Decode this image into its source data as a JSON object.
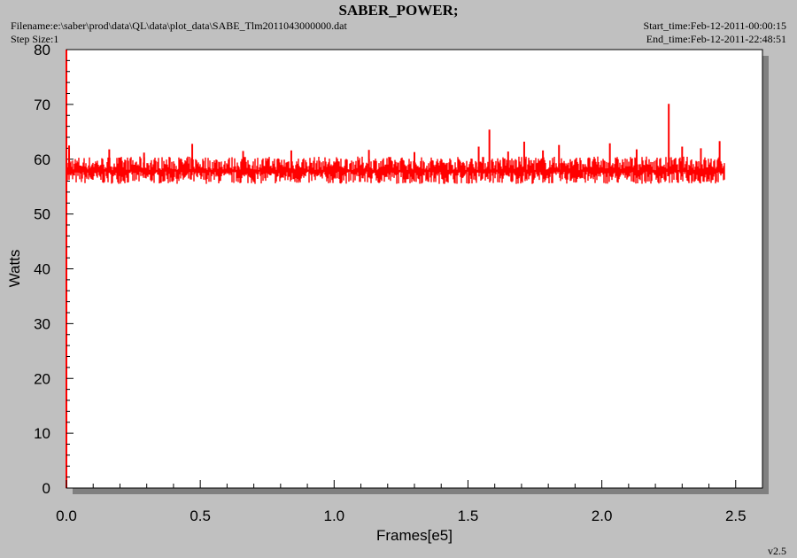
{
  "header": {
    "title": "SABER_POWER;",
    "filename": "Filename:e:\\saber\\prod\\data\\QL\\data\\plot_data\\SABE_Tlm2011043000000.dat",
    "step_size": "Step Size:1",
    "start_time": "Start_time:Feb-12-2011-00:00:15",
    "end_time": "End_time:Feb-12-2011-22:48:51"
  },
  "footer": {
    "version": "v2.5"
  },
  "colors": {
    "series": "#ff0000",
    "background": "#c0c0c0",
    "plot_area": "#ffffff",
    "shadow": "#808080"
  },
  "chart_data": {
    "type": "line",
    "title": "SABER_POWER;",
    "xlabel": "Frames[e5]",
    "ylabel": "Watts",
    "xlim": [
      0,
      2.6
    ],
    "ylim": [
      0,
      80
    ],
    "xticks": [
      "0.0",
      "0.5",
      "1.0",
      "1.5",
      "2.0",
      "2.5"
    ],
    "yticks": [
      "0",
      "10",
      "20",
      "30",
      "40",
      "50",
      "60",
      "70",
      "80"
    ],
    "grid": false,
    "series": [
      {
        "color": "#ff0000",
        "x_range": [
          0,
          2.46
        ],
        "baseline": 58,
        "band": [
          55.5,
          60.5
        ],
        "spikes": [
          {
            "x": 0.01,
            "y": 62.5
          },
          {
            "x": 0.16,
            "y": 61.8
          },
          {
            "x": 0.29,
            "y": 61.2
          },
          {
            "x": 0.47,
            "y": 62.8
          },
          {
            "x": 0.66,
            "y": 61.5
          },
          {
            "x": 0.84,
            "y": 61.6
          },
          {
            "x": 1.13,
            "y": 61.7
          },
          {
            "x": 1.3,
            "y": 61.3
          },
          {
            "x": 1.54,
            "y": 62.3
          },
          {
            "x": 1.58,
            "y": 65.4
          },
          {
            "x": 1.65,
            "y": 61.4
          },
          {
            "x": 1.71,
            "y": 63.2
          },
          {
            "x": 1.78,
            "y": 61.6
          },
          {
            "x": 1.84,
            "y": 62.6
          },
          {
            "x": 2.03,
            "y": 62.9
          },
          {
            "x": 2.13,
            "y": 61.8
          },
          {
            "x": 2.25,
            "y": 70.1
          },
          {
            "x": 2.3,
            "y": 62.3
          },
          {
            "x": 2.37,
            "y": 62.0
          },
          {
            "x": 2.44,
            "y": 63.3
          }
        ]
      }
    ]
  }
}
